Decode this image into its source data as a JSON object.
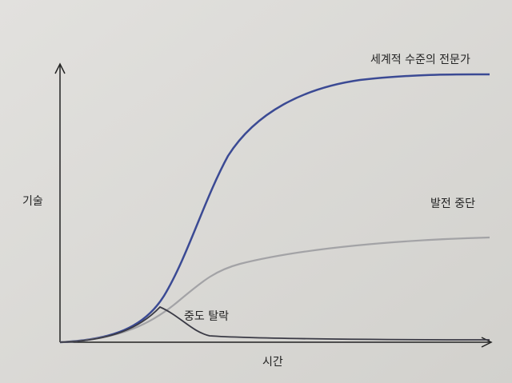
{
  "axes": {
    "y_label": "기술",
    "x_label": "시간"
  },
  "curves": [
    {
      "label": "세계적 수준의 전문가"
    },
    {
      "label": "발전 중단"
    },
    {
      "label": "중도 탈락"
    }
  ]
}
